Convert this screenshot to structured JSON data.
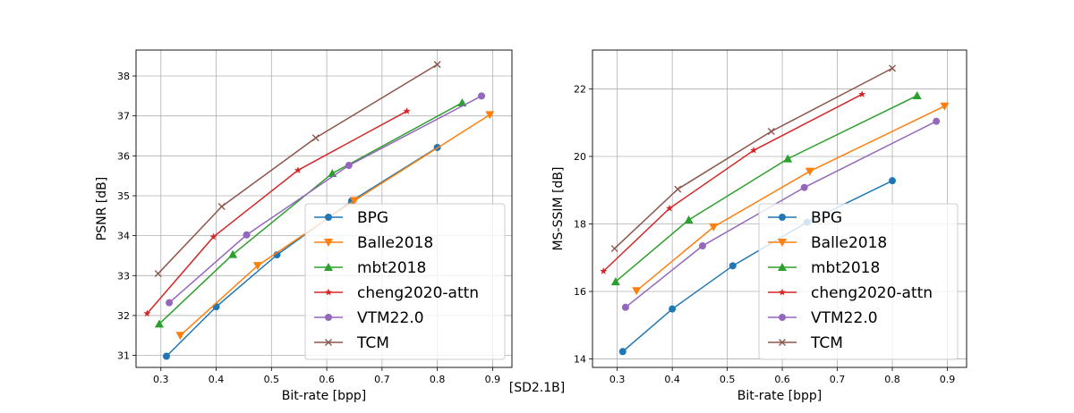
{
  "figure_caption": "[SD2.1B]",
  "colors": {
    "BPG": "#1f77b4",
    "Balle2018": "#ff7f0e",
    "mbt2018": "#2ca02c",
    "cheng2020-attn": "#d62728",
    "VTM22.0": "#9467bd",
    "TCM": "#8c564b"
  },
  "chart_data": [
    {
      "type": "line",
      "xlabel": "Bit-rate [bpp]",
      "ylabel": "PSNR [dB]",
      "xlim": [
        0.255,
        0.935
      ],
      "ylim": [
        30.7,
        38.65
      ],
      "xticks": [
        "0.3",
        "0.4",
        "0.5",
        "0.6",
        "0.7",
        "0.8",
        "0.9"
      ],
      "yticks": [
        "31",
        "32",
        "33",
        "34",
        "35",
        "36",
        "37",
        "38"
      ],
      "grid": true,
      "legend": "lower-right",
      "series": [
        {
          "name": "BPG",
          "marker": "circle",
          "x": [
            0.31,
            0.4,
            0.51,
            0.645,
            0.8
          ],
          "y": [
            30.98,
            32.22,
            33.52,
            34.87,
            36.21
          ]
        },
        {
          "name": "Balle2018",
          "marker": "triangle-down",
          "x": [
            0.335,
            0.475,
            0.65,
            0.895
          ],
          "y": [
            31.5,
            33.25,
            34.88,
            37.03
          ]
        },
        {
          "name": "mbt2018",
          "marker": "triangle-up",
          "x": [
            0.297,
            0.43,
            0.61,
            0.845
          ],
          "y": [
            31.79,
            33.53,
            35.56,
            37.33
          ]
        },
        {
          "name": "cheng2020-attn",
          "marker": "star",
          "x": [
            0.275,
            0.395,
            0.548,
            0.745
          ],
          "y": [
            32.05,
            33.97,
            35.64,
            37.12
          ]
        },
        {
          "name": "VTM22.0",
          "marker": "circle",
          "x": [
            0.315,
            0.455,
            0.64,
            0.88
          ],
          "y": [
            32.32,
            34.02,
            35.76,
            37.5
          ]
        },
        {
          "name": "TCM",
          "marker": "x",
          "x": [
            0.295,
            0.41,
            0.58,
            0.8
          ],
          "y": [
            33.05,
            34.73,
            36.45,
            38.29
          ]
        }
      ]
    },
    {
      "type": "line",
      "xlabel": "Bit-rate [bpp]",
      "ylabel": "MS-SSIM [dB]",
      "xlim": [
        0.255,
        0.935
      ],
      "ylim": [
        13.75,
        23.15
      ],
      "xticks": [
        "0.3",
        "0.4",
        "0.5",
        "0.6",
        "0.7",
        "0.8",
        "0.9"
      ],
      "yticks": [
        "14",
        "16",
        "18",
        "20",
        "22"
      ],
      "grid": true,
      "legend": "lower-right",
      "series": [
        {
          "name": "BPG",
          "marker": "circle",
          "x": [
            0.31,
            0.4,
            0.51,
            0.645,
            0.8
          ],
          "y": [
            14.22,
            15.48,
            16.76,
            18.05,
            19.28
          ]
        },
        {
          "name": "Balle2018",
          "marker": "triangle-down",
          "x": [
            0.335,
            0.475,
            0.65,
            0.895
          ],
          "y": [
            16.02,
            17.91,
            19.56,
            21.49
          ]
        },
        {
          "name": "mbt2018",
          "marker": "triangle-up",
          "x": [
            0.297,
            0.43,
            0.61,
            0.845
          ],
          "y": [
            16.29,
            18.12,
            19.93,
            21.8
          ]
        },
        {
          "name": "cheng2020-attn",
          "marker": "star",
          "x": [
            0.275,
            0.395,
            0.548,
            0.745
          ],
          "y": [
            16.6,
            18.46,
            20.18,
            21.84
          ]
        },
        {
          "name": "VTM22.0",
          "marker": "circle",
          "x": [
            0.315,
            0.455,
            0.64,
            0.88
          ],
          "y": [
            15.53,
            17.35,
            19.08,
            21.04
          ]
        },
        {
          "name": "TCM",
          "marker": "x",
          "x": [
            0.295,
            0.41,
            0.58,
            0.8
          ],
          "y": [
            17.27,
            19.03,
            20.74,
            22.61
          ]
        }
      ]
    }
  ]
}
